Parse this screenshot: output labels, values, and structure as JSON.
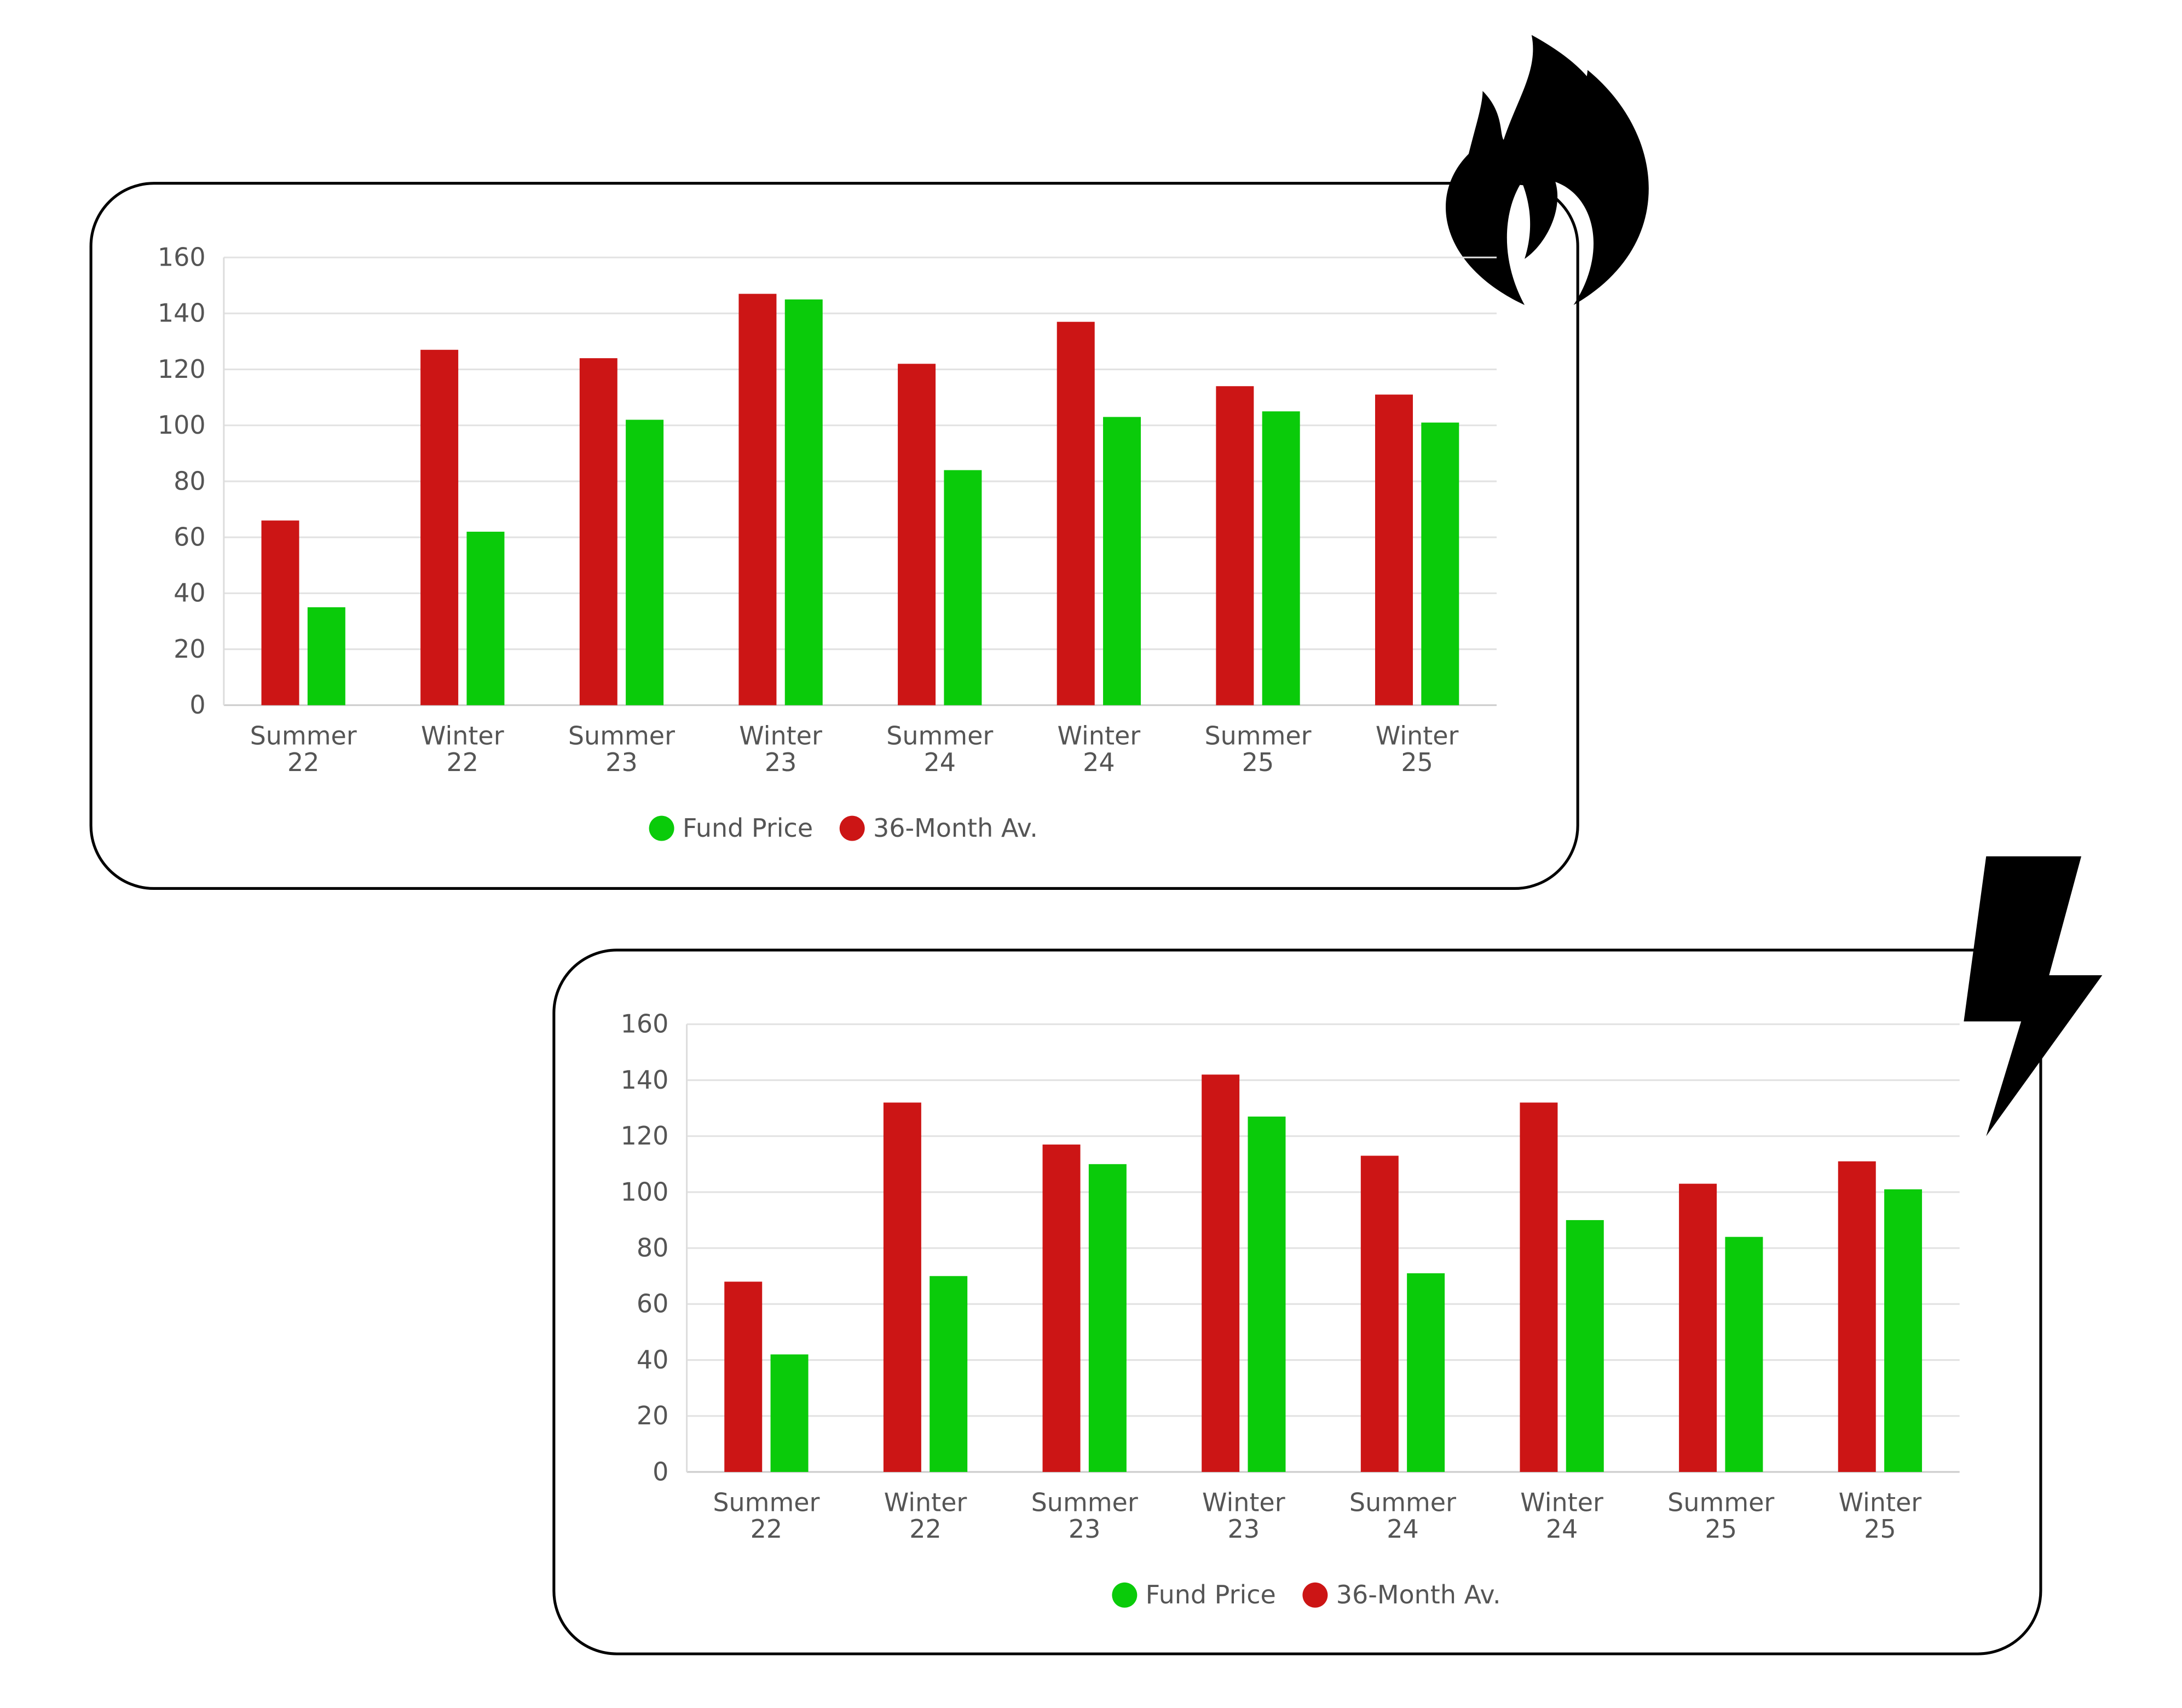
{
  "chart_data": [
    {
      "type": "bar",
      "categories": [
        "Summer 22",
        "Winter 22",
        "Summer 23",
        "Winter 23",
        "Summer 24",
        "Winter 24",
        "Summer 25",
        "Winter 25"
      ],
      "series": [
        {
          "name": "Fund Price",
          "color": "#0acb0a",
          "values": [
            35,
            62,
            102,
            145,
            84,
            103,
            105,
            101
          ]
        },
        {
          "name": "36-Month Av.",
          "color": "#cc1515",
          "values": [
            66,
            127,
            124,
            147,
            122,
            137,
            114,
            111
          ]
        }
      ],
      "ylim": [
        0,
        160
      ],
      "yticks": [
        0,
        20,
        40,
        60,
        80,
        100,
        120,
        140,
        160
      ],
      "grid": true,
      "legend": "bottom"
    },
    {
      "type": "bar",
      "categories": [
        "Summer 22",
        "Winter 22",
        "Summer 23",
        "Winter 23",
        "Summer 24",
        "Winter 24",
        "Summer 25",
        "Winter 25"
      ],
      "series": [
        {
          "name": "Fund Price",
          "color": "#0acb0a",
          "values": [
            42,
            70,
            110,
            127,
            71,
            90,
            84,
            101
          ]
        },
        {
          "name": "36-Month Av.",
          "color": "#cc1515",
          "values": [
            68,
            132,
            117,
            142,
            113,
            132,
            103,
            111
          ]
        }
      ],
      "ylim": [
        0,
        160
      ],
      "yticks": [
        0,
        20,
        40,
        60,
        80,
        100,
        120,
        140,
        160
      ],
      "grid": true,
      "legend": "bottom"
    }
  ]
}
